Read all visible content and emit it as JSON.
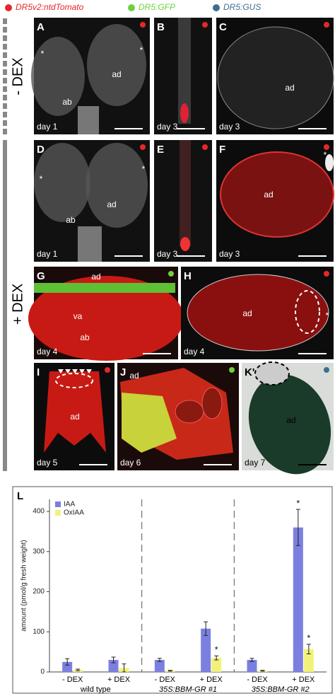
{
  "legend": [
    "DR5v2:ntdTomato",
    "DR5:GFP",
    "DR5:GUS"
  ],
  "side_labels": [
    "- DEX",
    "+ DEX"
  ],
  "panels": [
    {
      "letter": "A",
      "day": "day 1",
      "labels": [
        "*",
        "*",
        "ab",
        "ad"
      ]
    },
    {
      "letter": "B",
      "day": "day 3",
      "labels": []
    },
    {
      "letter": "C",
      "day": "day 3",
      "labels": [
        "ad"
      ]
    },
    {
      "letter": "D",
      "day": "day 1",
      "labels": [
        "*",
        "*",
        "ab",
        "ad"
      ]
    },
    {
      "letter": "E",
      "day": "day 3",
      "labels": []
    },
    {
      "letter": "F",
      "day": "day 3",
      "labels": [
        "ad",
        "*"
      ]
    },
    {
      "letter": "G",
      "day": "day 4",
      "labels": [
        "ad",
        "va",
        "ab"
      ]
    },
    {
      "letter": "H",
      "day": "day 4",
      "labels": [
        "ad",
        "*"
      ]
    },
    {
      "letter": "I",
      "day": "day 5",
      "labels": [
        "ad"
      ]
    },
    {
      "letter": "J",
      "day": "day 6",
      "labels": [
        "ad"
      ]
    },
    {
      "letter": "K'",
      "day": "day 7",
      "labels": [
        "ad"
      ]
    }
  ],
  "chart_data": {
    "type": "bar",
    "letter": "L",
    "y_label": "amount (pmol/g fresh weight)",
    "categories": [
      "- DEX",
      "+ DEX",
      "- DEX",
      "+ DEX",
      "- DEX",
      "+ DEX"
    ],
    "groups": [
      "wild type",
      "35S:BBM-GR #1",
      "35S:BBM-GR #2"
    ],
    "series": [
      {
        "name": "IAA",
        "color": "#7b80e0",
        "values": [
          25,
          30,
          30,
          108,
          30,
          360
        ],
        "errors": [
          8,
          7,
          4,
          17,
          4,
          45
        ],
        "marks": [
          null,
          null,
          null,
          null,
          null,
          "*"
        ]
      },
      {
        "name": "OxIAA",
        "color": "#f2f27a",
        "values": [
          5,
          10,
          3,
          35,
          3,
          57
        ],
        "errors": [
          2,
          10,
          1,
          5,
          1,
          12
        ],
        "marks": [
          null,
          null,
          null,
          "*",
          null,
          "*"
        ]
      }
    ],
    "ylim": [
      0,
      430
    ],
    "yticks": [
      0,
      100,
      200,
      300,
      400
    ]
  }
}
